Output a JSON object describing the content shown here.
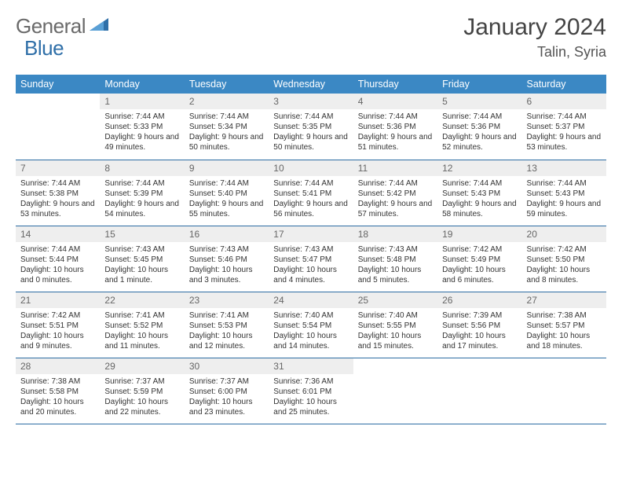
{
  "brand": {
    "part1": "General",
    "part2": "Blue"
  },
  "title": "January 2024",
  "location": "Talin, Syria",
  "daysOfWeek": [
    "Sunday",
    "Monday",
    "Tuesday",
    "Wednesday",
    "Thursday",
    "Friday",
    "Saturday"
  ],
  "colors": {
    "header_bg": "#3b88c4",
    "header_text": "#ffffff",
    "daynum_bg": "#eeeeee",
    "daynum_text": "#666666",
    "rule": "#2d6da3",
    "body_text": "#333333",
    "title_text": "#444444",
    "logo_gray": "#6a6a6a",
    "logo_blue": "#2f6fa8"
  },
  "weeks": [
    [
      null,
      {
        "n": "1",
        "sr": "7:44 AM",
        "ss": "5:33 PM",
        "dl": "9 hours and 49 minutes."
      },
      {
        "n": "2",
        "sr": "7:44 AM",
        "ss": "5:34 PM",
        "dl": "9 hours and 50 minutes."
      },
      {
        "n": "3",
        "sr": "7:44 AM",
        "ss": "5:35 PM",
        "dl": "9 hours and 50 minutes."
      },
      {
        "n": "4",
        "sr": "7:44 AM",
        "ss": "5:36 PM",
        "dl": "9 hours and 51 minutes."
      },
      {
        "n": "5",
        "sr": "7:44 AM",
        "ss": "5:36 PM",
        "dl": "9 hours and 52 minutes."
      },
      {
        "n": "6",
        "sr": "7:44 AM",
        "ss": "5:37 PM",
        "dl": "9 hours and 53 minutes."
      }
    ],
    [
      {
        "n": "7",
        "sr": "7:44 AM",
        "ss": "5:38 PM",
        "dl": "9 hours and 53 minutes."
      },
      {
        "n": "8",
        "sr": "7:44 AM",
        "ss": "5:39 PM",
        "dl": "9 hours and 54 minutes."
      },
      {
        "n": "9",
        "sr": "7:44 AM",
        "ss": "5:40 PM",
        "dl": "9 hours and 55 minutes."
      },
      {
        "n": "10",
        "sr": "7:44 AM",
        "ss": "5:41 PM",
        "dl": "9 hours and 56 minutes."
      },
      {
        "n": "11",
        "sr": "7:44 AM",
        "ss": "5:42 PM",
        "dl": "9 hours and 57 minutes."
      },
      {
        "n": "12",
        "sr": "7:44 AM",
        "ss": "5:43 PM",
        "dl": "9 hours and 58 minutes."
      },
      {
        "n": "13",
        "sr": "7:44 AM",
        "ss": "5:43 PM",
        "dl": "9 hours and 59 minutes."
      }
    ],
    [
      {
        "n": "14",
        "sr": "7:44 AM",
        "ss": "5:44 PM",
        "dl": "10 hours and 0 minutes."
      },
      {
        "n": "15",
        "sr": "7:43 AM",
        "ss": "5:45 PM",
        "dl": "10 hours and 1 minute."
      },
      {
        "n": "16",
        "sr": "7:43 AM",
        "ss": "5:46 PM",
        "dl": "10 hours and 3 minutes."
      },
      {
        "n": "17",
        "sr": "7:43 AM",
        "ss": "5:47 PM",
        "dl": "10 hours and 4 minutes."
      },
      {
        "n": "18",
        "sr": "7:43 AM",
        "ss": "5:48 PM",
        "dl": "10 hours and 5 minutes."
      },
      {
        "n": "19",
        "sr": "7:42 AM",
        "ss": "5:49 PM",
        "dl": "10 hours and 6 minutes."
      },
      {
        "n": "20",
        "sr": "7:42 AM",
        "ss": "5:50 PM",
        "dl": "10 hours and 8 minutes."
      }
    ],
    [
      {
        "n": "21",
        "sr": "7:42 AM",
        "ss": "5:51 PM",
        "dl": "10 hours and 9 minutes."
      },
      {
        "n": "22",
        "sr": "7:41 AM",
        "ss": "5:52 PM",
        "dl": "10 hours and 11 minutes."
      },
      {
        "n": "23",
        "sr": "7:41 AM",
        "ss": "5:53 PM",
        "dl": "10 hours and 12 minutes."
      },
      {
        "n": "24",
        "sr": "7:40 AM",
        "ss": "5:54 PM",
        "dl": "10 hours and 14 minutes."
      },
      {
        "n": "25",
        "sr": "7:40 AM",
        "ss": "5:55 PM",
        "dl": "10 hours and 15 minutes."
      },
      {
        "n": "26",
        "sr": "7:39 AM",
        "ss": "5:56 PM",
        "dl": "10 hours and 17 minutes."
      },
      {
        "n": "27",
        "sr": "7:38 AM",
        "ss": "5:57 PM",
        "dl": "10 hours and 18 minutes."
      }
    ],
    [
      {
        "n": "28",
        "sr": "7:38 AM",
        "ss": "5:58 PM",
        "dl": "10 hours and 20 minutes."
      },
      {
        "n": "29",
        "sr": "7:37 AM",
        "ss": "5:59 PM",
        "dl": "10 hours and 22 minutes."
      },
      {
        "n": "30",
        "sr": "7:37 AM",
        "ss": "6:00 PM",
        "dl": "10 hours and 23 minutes."
      },
      {
        "n": "31",
        "sr": "7:36 AM",
        "ss": "6:01 PM",
        "dl": "10 hours and 25 minutes."
      },
      null,
      null,
      null
    ]
  ],
  "labels": {
    "sunrise": "Sunrise:",
    "sunset": "Sunset:",
    "daylight": "Daylight:"
  }
}
